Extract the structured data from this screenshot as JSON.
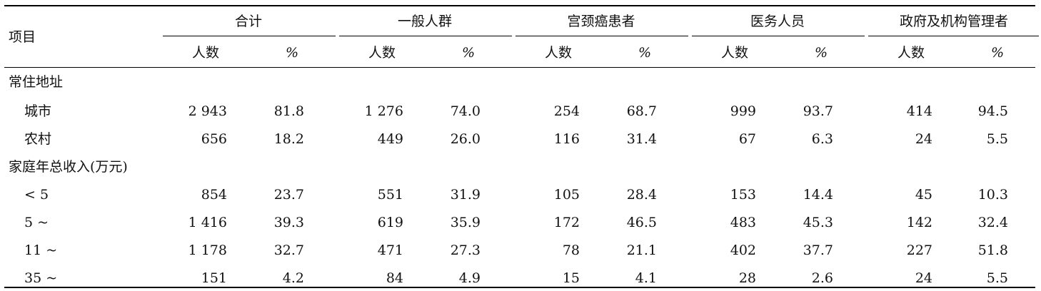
{
  "table": {
    "item_header": "项目",
    "groups": [
      "合计",
      "一般人群",
      "宫颈癌患者",
      "医务人员",
      "政府及机构管理者"
    ],
    "subheaders": [
      "人数",
      "%"
    ],
    "rows": [
      {
        "label": "常住地址",
        "section": true,
        "values": []
      },
      {
        "label": "城市",
        "section": false,
        "values": [
          "2 943",
          "81.8",
          "1 276",
          "74.0",
          "254",
          "68.7",
          "999",
          "93.7",
          "414",
          "94.5"
        ]
      },
      {
        "label": "农村",
        "section": false,
        "values": [
          "656",
          "18.2",
          "449",
          "26.0",
          "116",
          "31.4",
          "67",
          "6.3",
          "24",
          "5.5"
        ]
      },
      {
        "label": "家庭年总收入(万元)",
        "section": true,
        "values": []
      },
      {
        "label": "< 5",
        "section": false,
        "values": [
          "854",
          "23.7",
          "551",
          "31.9",
          "105",
          "28.4",
          "153",
          "14.4",
          "45",
          "10.3"
        ]
      },
      {
        "label": "5 ~",
        "section": false,
        "values": [
          "1 416",
          "39.3",
          "619",
          "35.9",
          "172",
          "46.5",
          "483",
          "45.3",
          "142",
          "32.4"
        ]
      },
      {
        "label": "11 ~",
        "section": false,
        "values": [
          "1 178",
          "32.7",
          "471",
          "27.3",
          "78",
          "21.1",
          "402",
          "37.7",
          "227",
          "51.8"
        ]
      },
      {
        "label": "35 ~",
        "section": false,
        "values": [
          "151",
          "4.2",
          "84",
          "4.9",
          "15",
          "4.1",
          "28",
          "2.6",
          "24",
          "5.5"
        ]
      }
    ]
  }
}
